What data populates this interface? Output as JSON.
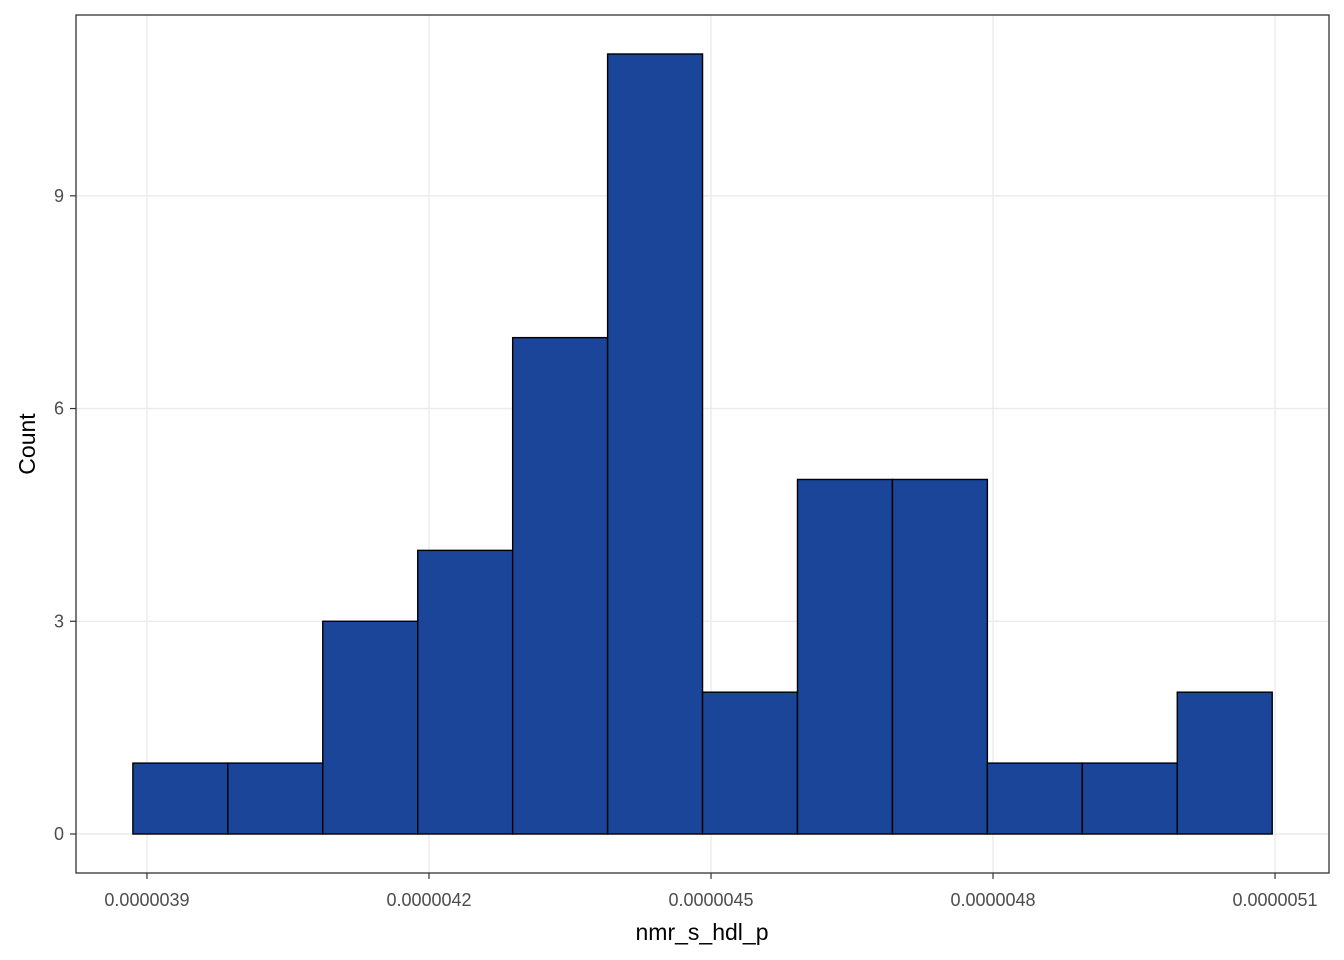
{
  "chart_data": {
    "type": "histogram",
    "x_label": "nmr_s_hdl_p",
    "y_label": "Count",
    "bins": [
      3.885e-06,
      3.986e-06,
      4.087e-06,
      4.188e-06,
      4.289e-06,
      4.39e-06,
      4.491e-06,
      4.592e-06,
      4.693e-06,
      4.794e-06,
      4.895e-06,
      4.996e-06,
      5.097e-06
    ],
    "values": [
      1,
      1,
      3,
      4,
      7,
      11,
      2,
      5,
      5,
      1,
      1,
      2
    ],
    "color": "#1a4599",
    "edge_color": "#000000",
    "xlim": [
      3.8245e-06,
      5.1574e-06
    ],
    "xticks": [
      3.9e-06,
      4.2e-06,
      4.5e-06,
      4.8e-06,
      5.1e-06
    ],
    "ylim": [
      -0.55,
      11.55
    ],
    "yticks": [
      0,
      3,
      6,
      9
    ],
    "grid": true
  }
}
